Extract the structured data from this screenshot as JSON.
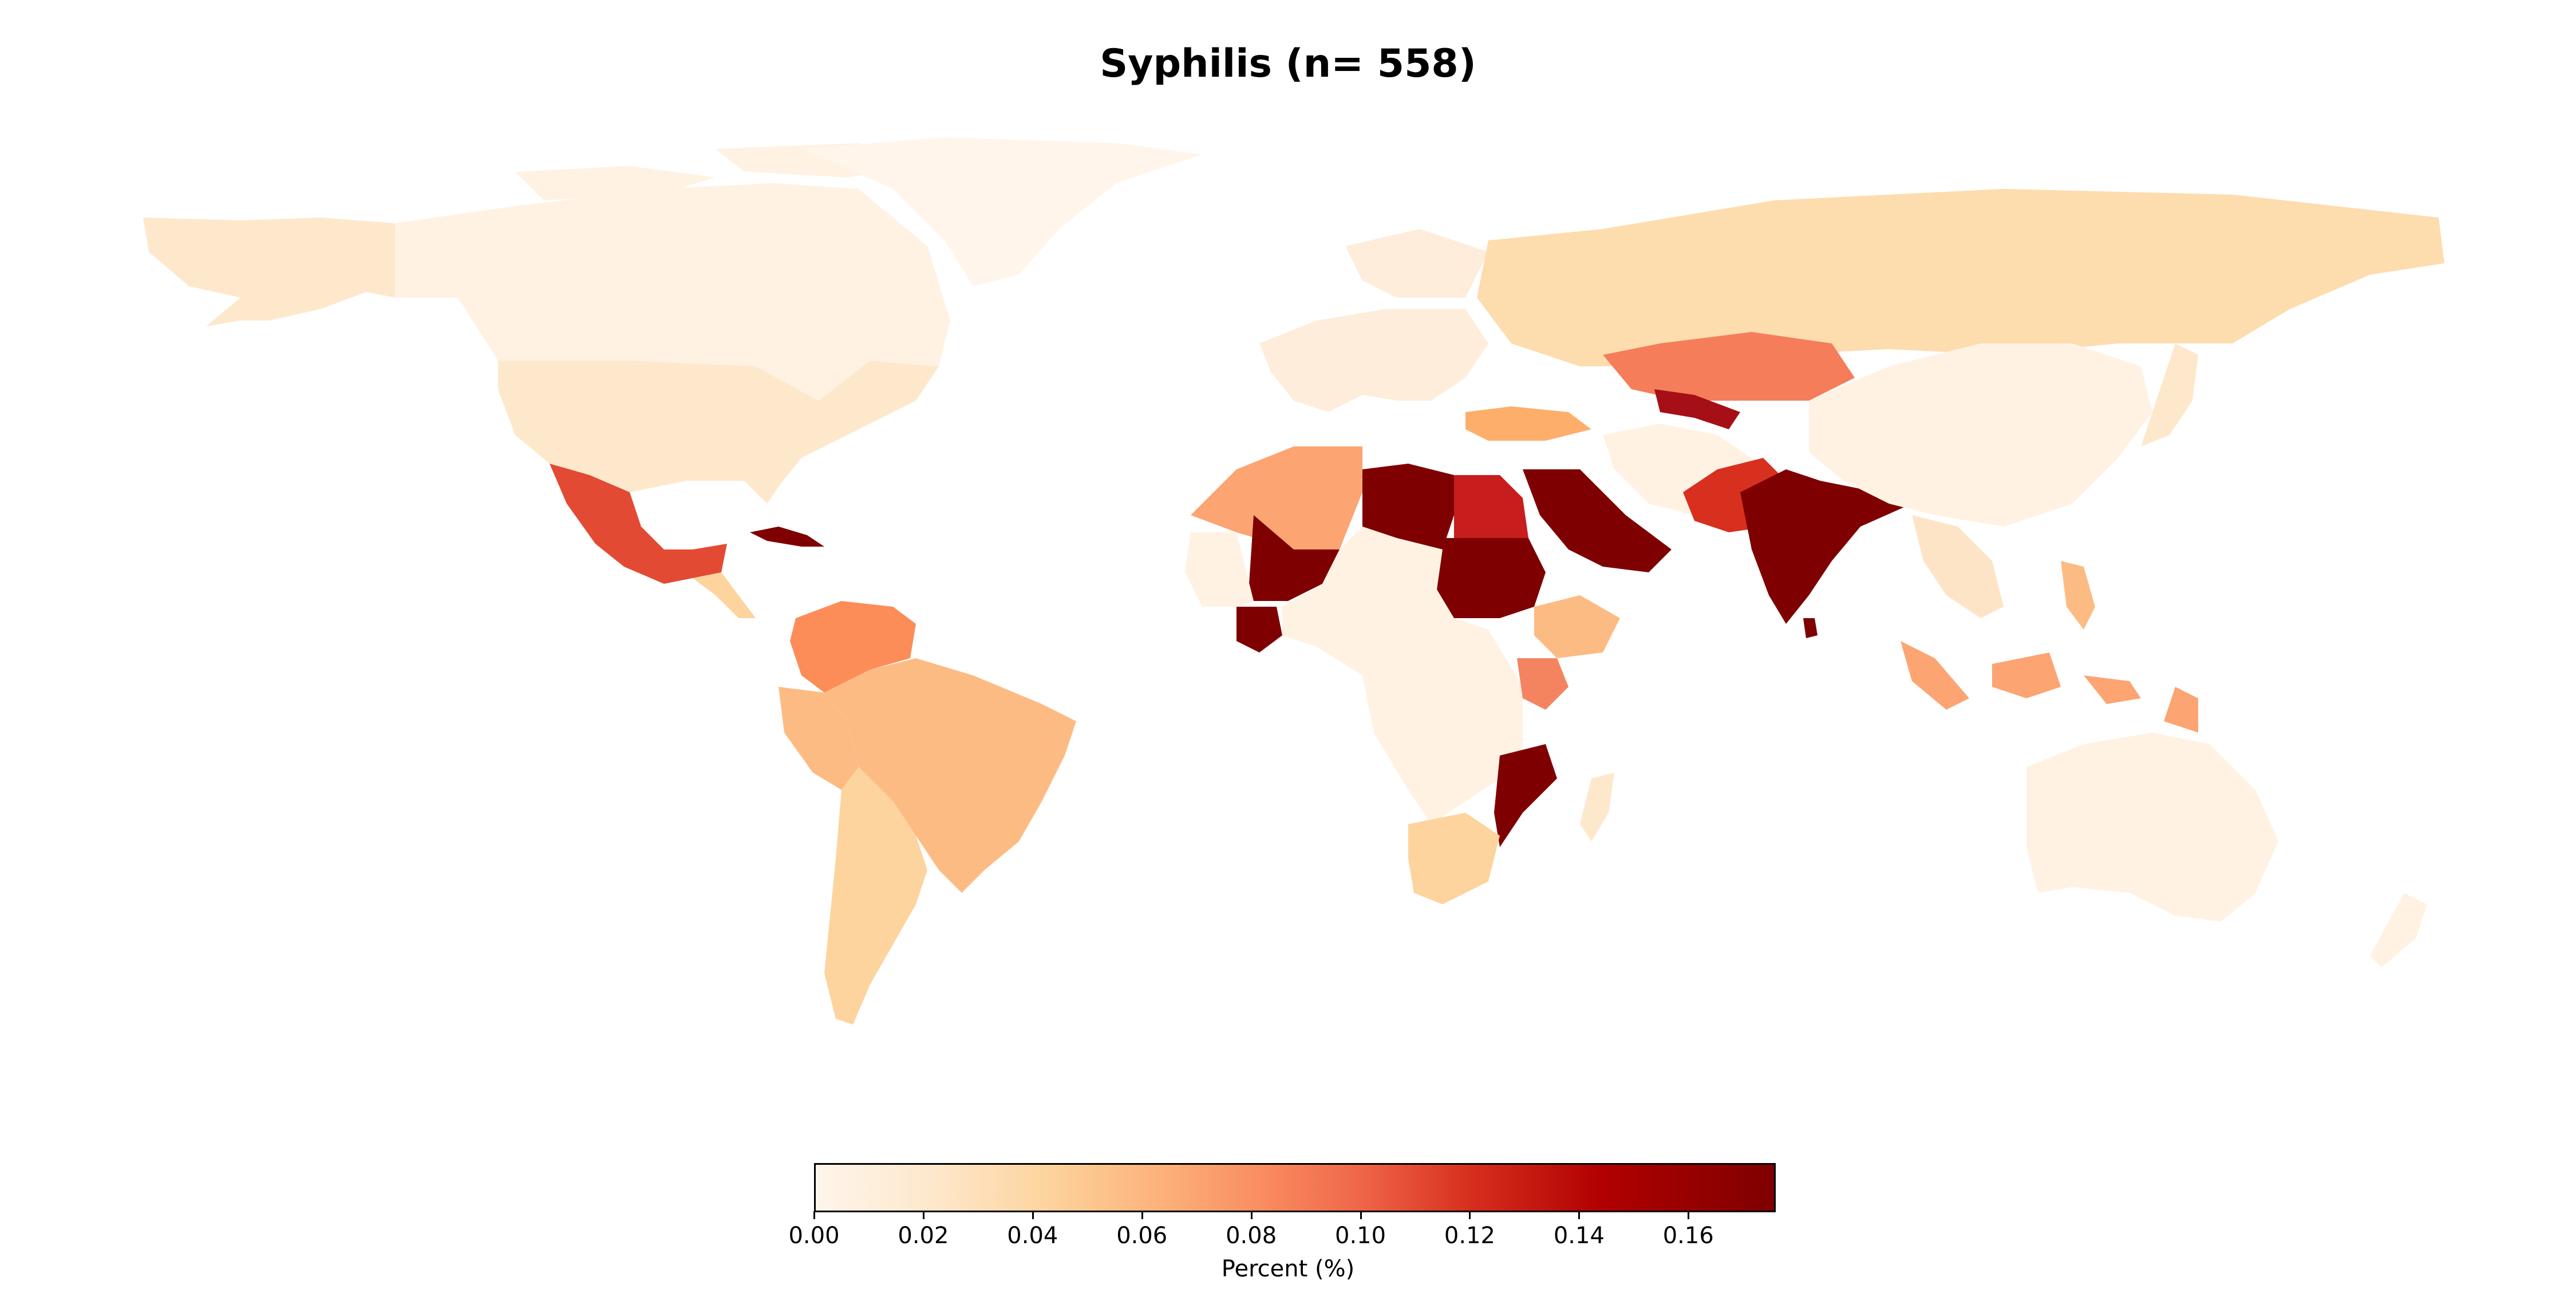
{
  "title": "Syphilis (n= 558)",
  "colorbar": {
    "label": "Percent (%)",
    "ticks": [
      "0.00",
      "0.02",
      "0.04",
      "0.06",
      "0.08",
      "0.10",
      "0.12",
      "0.14",
      "0.16"
    ],
    "range": [
      0,
      0.176
    ],
    "colormap": "OrRd"
  },
  "regions": [
    {
      "name": "Mexico",
      "value": 0.12
    },
    {
      "name": "Cuba",
      "value": 0.17
    },
    {
      "name": "USA",
      "value": 0.02
    },
    {
      "name": "Canada",
      "value": 0.01
    },
    {
      "name": "Greenland",
      "value": 0.005
    },
    {
      "name": "Alaska",
      "value": 0.02
    },
    {
      "name": "Colombia / Venezuela",
      "value": 0.07
    },
    {
      "name": "Brazil",
      "value": 0.055
    },
    {
      "name": "Argentina",
      "value": 0.03
    },
    {
      "name": "Libya",
      "value": 0.17
    },
    {
      "name": "Egypt",
      "value": 0.14
    },
    {
      "name": "Sudan",
      "value": 0.17
    },
    {
      "name": "Mali",
      "value": 0.17
    },
    {
      "name": "Côte d'Ivoire",
      "value": 0.17
    },
    {
      "name": "Algeria",
      "value": 0.065
    },
    {
      "name": "Ethiopia",
      "value": 0.045
    },
    {
      "name": "Kenya",
      "value": 0.08
    },
    {
      "name": "Mozambique",
      "value": 0.17
    },
    {
      "name": "South Africa",
      "value": 0.04
    },
    {
      "name": "Saudi Arabia",
      "value": 0.17
    },
    {
      "name": "Turkey",
      "value": 0.06
    },
    {
      "name": "India",
      "value": 0.17
    },
    {
      "name": "Pakistan",
      "value": 0.13
    },
    {
      "name": "Kazakhstan",
      "value": 0.09
    },
    {
      "name": "Uzbekistan",
      "value": 0.16
    },
    {
      "name": "Russia",
      "value": 0.035
    },
    {
      "name": "China",
      "value": 0.01
    },
    {
      "name": "Indonesia",
      "value": 0.06
    },
    {
      "name": "Australia",
      "value": 0.015
    },
    {
      "name": "Madagascar",
      "value": 0.02
    }
  ]
}
